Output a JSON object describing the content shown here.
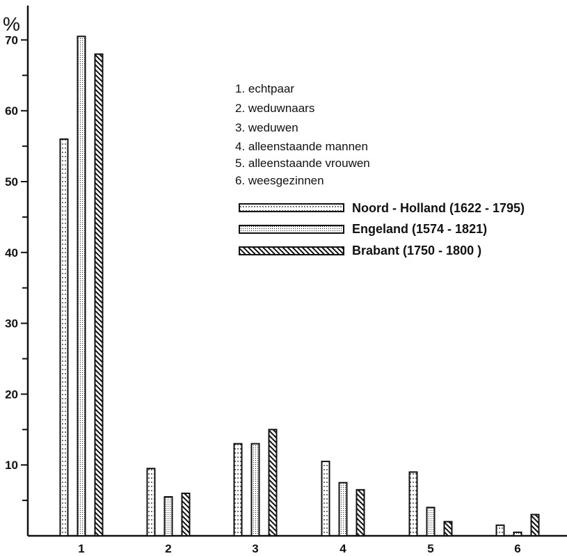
{
  "chart_data": {
    "type": "bar",
    "ylabel": "%",
    "ylim": [
      0,
      74
    ],
    "yticks": [
      10,
      20,
      30,
      40,
      50,
      60,
      70
    ],
    "categories": [
      "1",
      "2",
      "3",
      "4",
      "5",
      "6"
    ],
    "category_key": [
      "1. echtpaar",
      "2. weduwnaars",
      "3. weduwen",
      "4. alleenstaande mannen",
      "5. alleenstaande vrouwen",
      "6. weesgezinnen"
    ],
    "series": [
      {
        "name": "Noord - Holland (1622 - 1795)",
        "pattern": "sparse-dots",
        "values": [
          56,
          9.5,
          13,
          10.5,
          9,
          1.5
        ]
      },
      {
        "name": "Engeland (1574 - 1821)",
        "pattern": "dense-dots",
        "values": [
          70.5,
          5.5,
          13,
          7.5,
          4,
          0.5
        ]
      },
      {
        "name": "Brabant (1750 - 1800 )",
        "pattern": "diagonal-hatch",
        "values": [
          68,
          6,
          15,
          6.5,
          2,
          3
        ]
      }
    ],
    "grid": false,
    "legend_position": "top-right"
  }
}
